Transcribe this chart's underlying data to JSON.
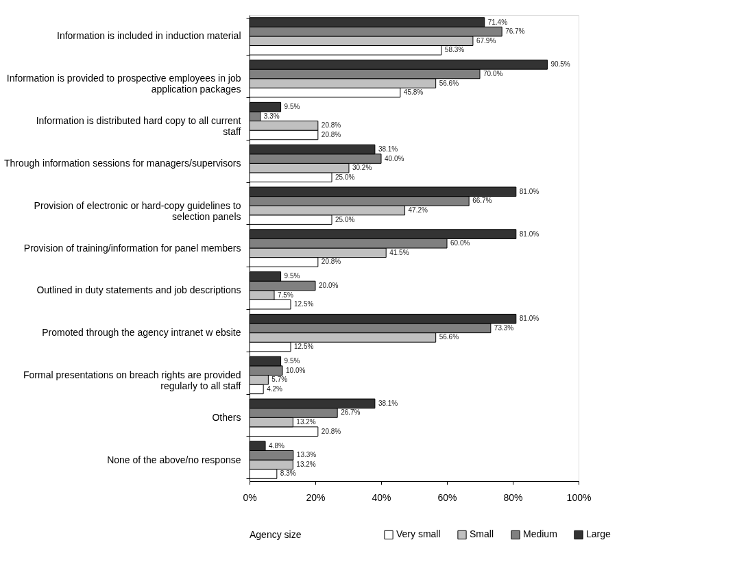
{
  "chart_data": {
    "type": "bar",
    "orientation": "horizontal",
    "categories": [
      "Information is included in induction material",
      "Information is provided to prospective employees in job application packages",
      "Information is distributed hard copy to all current staff",
      "Through information sessions for managers/supervisors",
      "Provision of electronic or hard-copy guidelines to selection panels",
      "Provision of training/information for panel members",
      "Outlined in duty statements and job descriptions",
      "Promoted through the agency intranet w ebsite",
      "Formal presentations on breach rights are provided regularly to all staff",
      "Others",
      "None of the above/no response"
    ],
    "series": [
      {
        "name": "Very small",
        "color": "#ffffff",
        "values": [
          58.3,
          45.8,
          20.8,
          25.0,
          25.0,
          20.8,
          12.5,
          12.5,
          4.2,
          20.8,
          8.3
        ],
        "value_labels": [
          "58.3%",
          "45.8%",
          "20.8%",
          "25.0%",
          "25.0%",
          "20.8%",
          "12.5%",
          "12.5%",
          "4.2%",
          "20.8%",
          "8.3%"
        ]
      },
      {
        "name": "Small",
        "color": "#c0c0c0",
        "values": [
          67.9,
          56.6,
          20.8,
          30.2,
          47.2,
          41.5,
          7.5,
          56.6,
          5.7,
          13.2,
          13.2
        ],
        "value_labels": [
          "67.9%",
          "56.6%",
          "20.8%",
          "30.2%",
          "47.2%",
          "41.5%",
          "7.5%",
          "56.6%",
          "5.7%",
          "13.2%",
          "13.2%"
        ]
      },
      {
        "name": "Medium",
        "color": "#808080",
        "values": [
          76.7,
          70.0,
          3.3,
          40.0,
          66.7,
          60.0,
          20.0,
          73.3,
          10.0,
          26.7,
          13.3
        ],
        "value_labels": [
          "76.7%",
          "70.0%",
          "3.3%",
          "40.0%",
          "66.7%",
          "60.0%",
          "20.0%",
          "73.3%",
          "10.0%",
          "26.7%",
          "13.3%"
        ]
      },
      {
        "name": "Large",
        "color": "#333333",
        "values": [
          71.4,
          90.5,
          9.5,
          38.1,
          81.0,
          81.0,
          9.5,
          81.0,
          9.5,
          38.1,
          4.8
        ],
        "value_labels": [
          "71.4%",
          "90.5%",
          "9.5%",
          "38.1%",
          "81.0%",
          "81.0%",
          "9.5%",
          "81.0%",
          "9.5%",
          "38.1%",
          "4.8%"
        ]
      }
    ],
    "xlim": [
      0,
      100
    ],
    "xticks": [
      {
        "value": 0,
        "label": "0%"
      },
      {
        "value": 20,
        "label": "20%"
      },
      {
        "value": 40,
        "label": "40%"
      },
      {
        "value": 60,
        "label": "60%"
      },
      {
        "value": 80,
        "label": "80%"
      },
      {
        "value": 100,
        "label": "100%"
      }
    ],
    "legend_title": "Agency size",
    "legend": "bottom",
    "grid": false
  }
}
